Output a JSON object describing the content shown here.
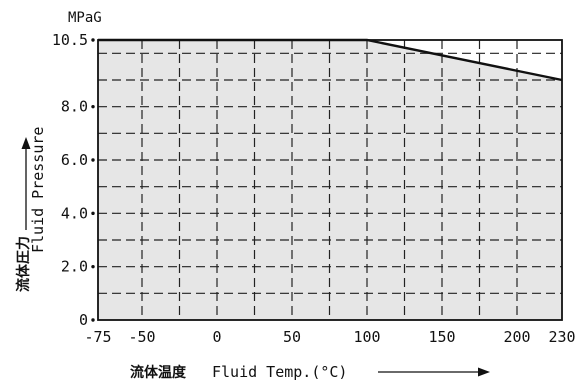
{
  "chart_data": {
    "type": "line",
    "title": "",
    "unit_label": "MPaG",
    "xlabel_jp": "流体温度",
    "xlabel": "Fluid Temp.(°C)",
    "ylabel_jp": "流体圧力",
    "ylabel": "Fluid Pressure",
    "x_ticks": [
      -75,
      -50,
      0,
      50,
      100,
      150,
      200,
      230
    ],
    "x_tick_labels": [
      "-75",
      "-50",
      "0",
      "50",
      "100",
      "150",
      "200",
      "230"
    ],
    "x_grid": [
      -50,
      -25,
      0,
      25,
      50,
      75,
      100,
      125,
      150,
      175,
      200
    ],
    "y_ticks": [
      0,
      2.0,
      4.0,
      6.0,
      8.0,
      10.5
    ],
    "y_tick_labels": [
      "0",
      "2.0",
      "4.0",
      "6.0",
      "8.0",
      "10.5"
    ],
    "y_grid": [
      1,
      2,
      3,
      4,
      5,
      6,
      7,
      8,
      9,
      10
    ],
    "xlim": [
      -75,
      230
    ],
    "ylim": [
      0,
      10.5
    ],
    "grid": true,
    "colors": {
      "fill": "#e6e6e6",
      "line": "#111111",
      "grid": "#222222"
    },
    "series": [
      {
        "x": [
          -75,
          100,
          230
        ],
        "y": [
          10.5,
          10.5,
          9.0
        ]
      }
    ]
  }
}
